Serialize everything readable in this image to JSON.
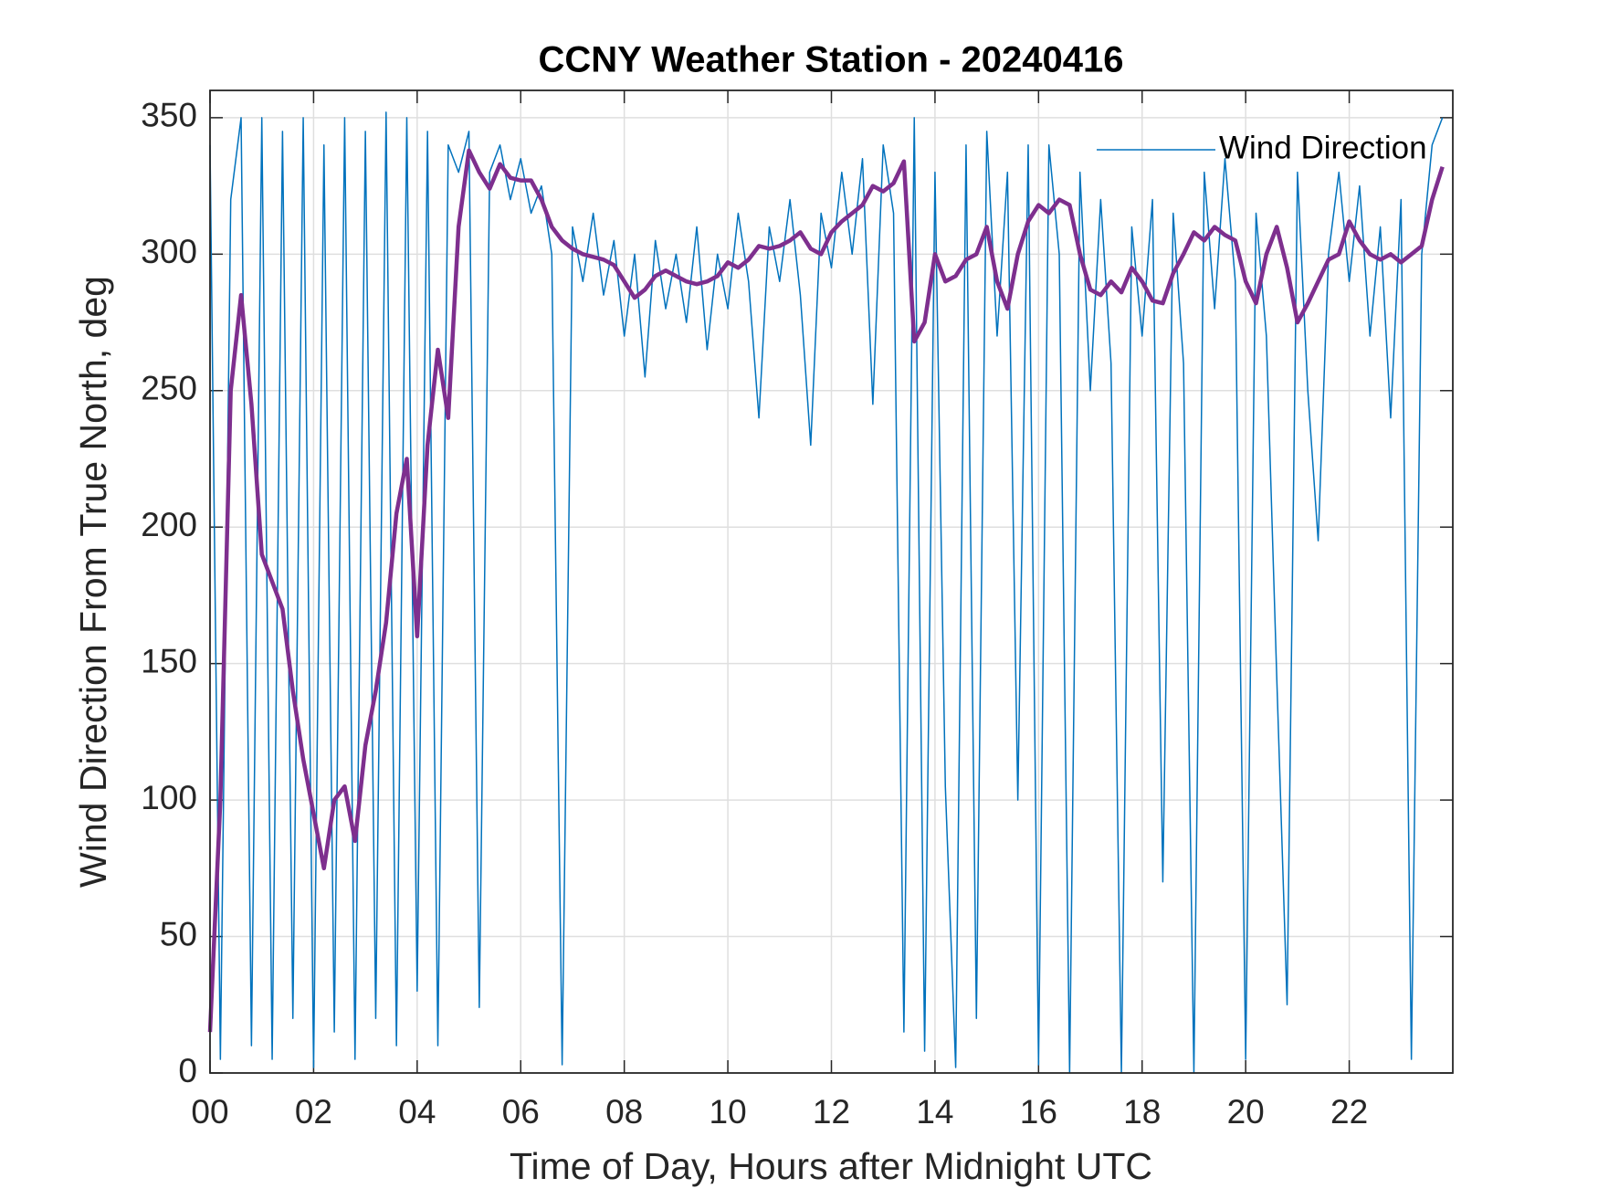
{
  "chart_data": {
    "type": "line",
    "title": "CCNY Weather Station - 20240416",
    "xlabel": "Time of Day, Hours after Midnight UTC",
    "ylabel": "Wind Direction From True North, deg",
    "x": [
      0,
      0.2,
      0.4,
      0.6,
      0.8,
      1,
      1.2,
      1.4,
      1.6,
      1.8,
      2,
      2.2,
      2.4,
      2.6,
      2.8,
      3,
      3.2,
      3.4,
      3.6,
      3.8,
      4,
      4.2,
      4.4,
      4.6,
      4.8,
      5,
      5.2,
      5.4,
      5.6,
      5.8,
      6,
      6.2,
      6.4,
      6.6,
      6.8,
      7,
      7.2,
      7.4,
      7.6,
      7.8,
      8,
      8.2,
      8.4,
      8.6,
      8.8,
      9,
      9.2,
      9.4,
      9.6,
      9.8,
      10,
      10.2,
      10.4,
      10.6,
      10.8,
      11,
      11.2,
      11.4,
      11.6,
      11.8,
      12,
      12.2,
      12.4,
      12.6,
      12.8,
      13,
      13.2,
      13.4,
      13.6,
      13.8,
      14,
      14.2,
      14.4,
      14.6,
      14.8,
      15,
      15.2,
      15.4,
      15.6,
      15.8,
      16,
      16.2,
      16.4,
      16.6,
      16.8,
      17,
      17.2,
      17.4,
      17.6,
      17.8,
      18,
      18.2,
      18.4,
      18.6,
      18.8,
      19,
      19.2,
      19.4,
      19.6,
      19.8,
      20,
      20.2,
      20.4,
      20.6,
      20.8,
      21,
      21.2,
      21.4,
      21.6,
      21.8,
      22,
      22.2,
      22.4,
      22.6,
      22.8,
      23,
      23.2,
      23.4,
      23.6,
      23.8
    ],
    "series": [
      {
        "name": "Wind Direction",
        "color": "#0072bd",
        "width": 1.5,
        "values": [
          340,
          5,
          320,
          350,
          10,
          350,
          5,
          345,
          20,
          350,
          2,
          340,
          15,
          350,
          5,
          345,
          20,
          352,
          10,
          350,
          30,
          345,
          10,
          340,
          330,
          345,
          24,
          330,
          340,
          320,
          335,
          315,
          325,
          300,
          3,
          310,
          290,
          315,
          285,
          305,
          270,
          300,
          255,
          305,
          280,
          300,
          275,
          310,
          265,
          300,
          280,
          315,
          290,
          240,
          310,
          290,
          320,
          285,
          230,
          315,
          295,
          330,
          300,
          335,
          245,
          340,
          315,
          15,
          350,
          8,
          330,
          105,
          2,
          340,
          20,
          345,
          270,
          330,
          100,
          340,
          3,
          340,
          300,
          0,
          330,
          250,
          320,
          260,
          0,
          310,
          270,
          320,
          70,
          315,
          260,
          0,
          330,
          280,
          335,
          290,
          5,
          315,
          270,
          145,
          25,
          330,
          250,
          195,
          300,
          330,
          290,
          325,
          270,
          310,
          240,
          320,
          5,
          300,
          340,
          350
        ]
      },
      {
        "color": "#7e2f8e",
        "width": 4.5,
        "values": [
          15,
          100,
          250,
          285,
          245,
          190,
          180,
          170,
          140,
          115,
          95,
          75,
          100,
          105,
          85,
          120,
          140,
          165,
          205,
          225,
          160,
          230,
          265,
          240,
          310,
          338,
          330,
          324,
          333,
          328,
          327,
          327,
          320,
          310,
          305,
          302,
          300,
          299,
          298,
          296,
          290,
          284,
          287,
          292,
          294,
          292,
          290,
          289,
          290,
          292,
          297,
          295,
          298,
          303,
          302,
          303,
          305,
          308,
          302,
          300,
          308,
          312,
          315,
          318,
          325,
          323,
          326,
          334,
          268,
          275,
          300,
          290,
          292,
          298,
          300,
          310,
          290,
          280,
          300,
          312,
          318,
          315,
          320,
          318,
          300,
          287,
          285,
          290,
          286,
          295,
          290,
          283,
          282,
          293,
          300,
          308,
          305,
          310,
          307,
          305,
          290,
          282,
          300,
          310,
          295,
          275,
          282,
          290,
          298,
          300,
          312,
          305,
          300,
          298,
          300,
          297,
          300,
          303,
          320,
          332
        ]
      }
    ],
    "xlim": [
      0,
      24
    ],
    "xticks": [
      {
        "value": 0,
        "label": "00"
      },
      {
        "value": 2,
        "label": "02"
      },
      {
        "value": 4,
        "label": "04"
      },
      {
        "value": 6,
        "label": "06"
      },
      {
        "value": 8,
        "label": "08"
      },
      10,
      12,
      14,
      16,
      18,
      20,
      22
    ],
    "ylim": [
      0,
      360
    ],
    "yticks": [
      0,
      50,
      100,
      150,
      200,
      250,
      300,
      350
    ],
    "grid": true,
    "legend": "upper right"
  }
}
